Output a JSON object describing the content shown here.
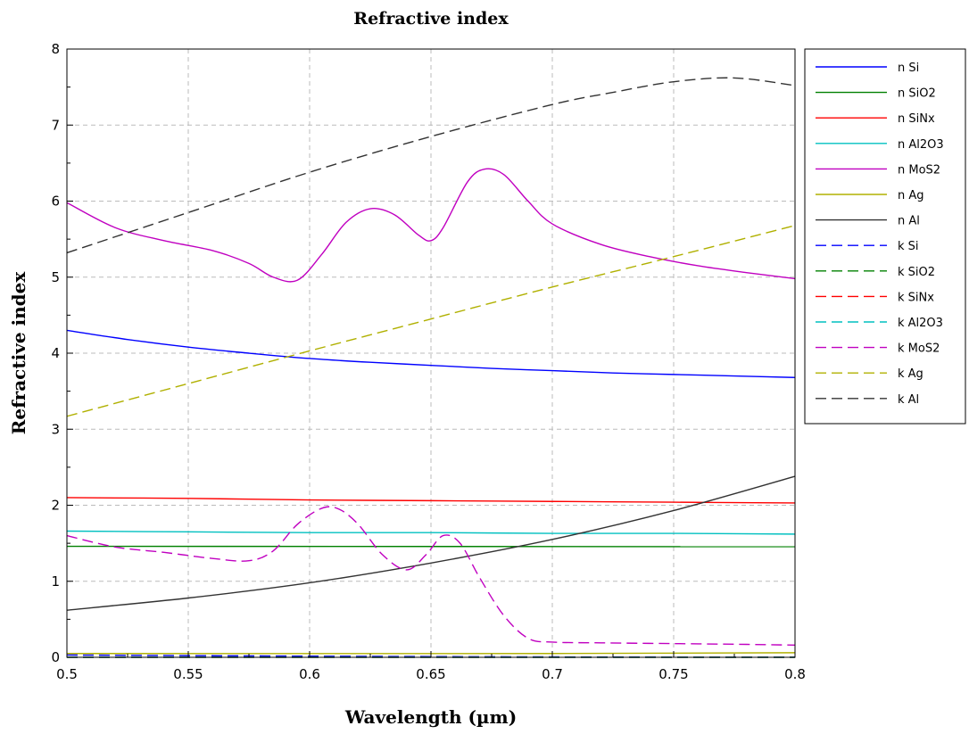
{
  "chart_data": {
    "type": "line",
    "title": "Refractive index",
    "xlabel": "Wavelength (µm)",
    "ylabel": "Refractive index",
    "xlim": [
      0.5,
      0.8
    ],
    "ylim": [
      0,
      8
    ],
    "x_ticks": [
      "0.5",
      "0.55",
      "0.6",
      "0.65",
      "0.7",
      "0.75",
      "0.8"
    ],
    "y_ticks": [
      "0",
      "1",
      "2",
      "3",
      "4",
      "5",
      "6",
      "7",
      "8"
    ],
    "grid": true,
    "legend_position": "outside-right-top",
    "series": [
      {
        "name": "n Si",
        "color": "#0000ff",
        "dash": "solid",
        "x": [
          0.5,
          0.525,
          0.55,
          0.575,
          0.6,
          0.625,
          0.65,
          0.675,
          0.7,
          0.725,
          0.75,
          0.775,
          0.8
        ],
        "y": [
          4.3,
          4.18,
          4.08,
          4.0,
          3.93,
          3.88,
          3.84,
          3.8,
          3.77,
          3.74,
          3.72,
          3.7,
          3.68
        ]
      },
      {
        "name": "n SiO2",
        "color": "#008000",
        "dash": "solid",
        "x": [
          0.5,
          0.8
        ],
        "y": [
          1.46,
          1.455
        ]
      },
      {
        "name": "n SiNx",
        "color": "#ff0000",
        "dash": "solid",
        "x": [
          0.5,
          0.55,
          0.6,
          0.65,
          0.7,
          0.75,
          0.8
        ],
        "y": [
          2.1,
          2.09,
          2.07,
          2.06,
          2.05,
          2.04,
          2.03
        ]
      },
      {
        "name": "n Al2O3",
        "color": "#00c0c0",
        "dash": "solid",
        "x": [
          0.5,
          0.55,
          0.6,
          0.65,
          0.7,
          0.75,
          0.8
        ],
        "y": [
          1.66,
          1.65,
          1.64,
          1.64,
          1.63,
          1.63,
          1.62
        ]
      },
      {
        "name": "n MoS2",
        "color": "#c000c0",
        "dash": "solid",
        "x": [
          0.5,
          0.52,
          0.54,
          0.56,
          0.575,
          0.585,
          0.595,
          0.605,
          0.615,
          0.625,
          0.635,
          0.645,
          0.65,
          0.655,
          0.665,
          0.672,
          0.68,
          0.69,
          0.7,
          0.72,
          0.74,
          0.76,
          0.78,
          0.8
        ],
        "y": [
          5.98,
          5.65,
          5.48,
          5.35,
          5.18,
          5.0,
          4.96,
          5.3,
          5.72,
          5.9,
          5.82,
          5.55,
          5.48,
          5.65,
          6.25,
          6.42,
          6.35,
          6.0,
          5.7,
          5.43,
          5.27,
          5.15,
          5.06,
          4.98
        ]
      },
      {
        "name": "n Ag",
        "color": "#b0b000",
        "dash": "solid",
        "x": [
          0.5,
          0.7,
          0.8
        ],
        "y": [
          0.05,
          0.05,
          0.06
        ]
      },
      {
        "name": "n Al",
        "color": "#333333",
        "dash": "solid",
        "x": [
          0.5,
          0.55,
          0.6,
          0.65,
          0.7,
          0.75,
          0.8
        ],
        "y": [
          0.62,
          0.78,
          0.98,
          1.24,
          1.55,
          1.93,
          2.38
        ]
      },
      {
        "name": "k Si",
        "color": "#0000ff",
        "dash": "dashed",
        "x": [
          0.5,
          0.6,
          0.7,
          0.8
        ],
        "y": [
          0.03,
          0.015,
          0.006,
          0.003
        ]
      },
      {
        "name": "k SiO2",
        "color": "#008000",
        "dash": "dashed",
        "x": [
          0.5,
          0.8
        ],
        "y": [
          0.0,
          0.0
        ]
      },
      {
        "name": "k SiNx",
        "color": "#ff0000",
        "dash": "dashed",
        "x": [
          0.5,
          0.8
        ],
        "y": [
          0.0,
          0.0
        ]
      },
      {
        "name": "k Al2O3",
        "color": "#00c0c0",
        "dash": "dashed",
        "x": [
          0.5,
          0.8
        ],
        "y": [
          0.0,
          0.0
        ]
      },
      {
        "name": "k MoS2",
        "color": "#c000c0",
        "dash": "dashed",
        "x": [
          0.5,
          0.52,
          0.54,
          0.56,
          0.575,
          0.585,
          0.595,
          0.605,
          0.612,
          0.62,
          0.63,
          0.64,
          0.648,
          0.655,
          0.662,
          0.67,
          0.68,
          0.69,
          0.7,
          0.72,
          0.75,
          0.78,
          0.8
        ],
        "y": [
          1.6,
          1.45,
          1.38,
          1.3,
          1.27,
          1.4,
          1.75,
          1.96,
          1.95,
          1.75,
          1.35,
          1.15,
          1.35,
          1.6,
          1.5,
          1.05,
          0.55,
          0.25,
          0.2,
          0.19,
          0.18,
          0.17,
          0.16
        ]
      },
      {
        "name": "k Ag",
        "color": "#b0b000",
        "dash": "dashed",
        "x": [
          0.5,
          0.55,
          0.6,
          0.65,
          0.7,
          0.75,
          0.8
        ],
        "y": [
          3.17,
          3.6,
          4.03,
          4.45,
          4.87,
          5.27,
          5.68
        ]
      },
      {
        "name": "k Al",
        "color": "#333333",
        "dash": "dashed",
        "x": [
          0.5,
          0.55,
          0.6,
          0.65,
          0.7,
          0.725,
          0.75,
          0.775,
          0.8
        ],
        "y": [
          5.32,
          5.85,
          6.38,
          6.85,
          7.27,
          7.43,
          7.57,
          7.62,
          7.52
        ]
      }
    ]
  }
}
